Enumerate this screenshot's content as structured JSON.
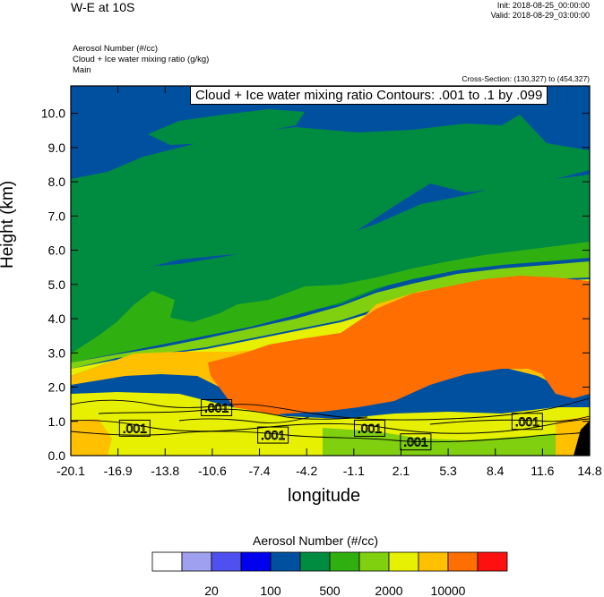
{
  "title": "W-E at 10S",
  "init": "Init: 2018-08-25_00:00:00",
  "valid": "Valid: 2018-08-29_03:00:00",
  "subtitles": [
    "Aerosol Number   (#/cc)",
    "Cloud + Ice water mixing ratio   (g/kg)",
    "Main"
  ],
  "cross_section": "Cross-Section: (130,327) to (454,327)",
  "contour_label": "Cloud + Ice water mixing ratio Contours: .001 to .1 by .099",
  "colors": {
    "levels": [
      "#ffffff",
      "#a0a0f0",
      "#5050f0",
      "#0000ee",
      "#0050a0",
      "#008c40",
      "#30b010",
      "#80d010",
      "#e6f000",
      "#ffc000",
      "#ff6e00",
      "#ff1010"
    ],
    "contour": "#000000"
  },
  "chart_data": {
    "type": "heatmap",
    "xlabel": "longitude",
    "ylabel": "Height (km)",
    "x_ticks": [
      "-20.1",
      "-16.9",
      "-13.8",
      "-10.6",
      "-7.4",
      "-4.2",
      "-1.1",
      "2.1",
      "5.3",
      "8.4",
      "11.6",
      "14.8"
    ],
    "y_ticks": [
      "0.0",
      "1.0",
      "2.0",
      "3.0",
      "4.0",
      "5.0",
      "6.0",
      "7.0",
      "8.0",
      "9.0",
      "10.0"
    ],
    "xlim": [
      -20.1,
      14.8
    ],
    "ylim": [
      0,
      10.8
    ],
    "colorbar": {
      "title": "Aerosol Number  (#/cc)",
      "labels": [
        "20",
        "100",
        "500",
        "2000",
        "10000"
      ]
    },
    "contour_labels": [
      {
        "text": ".001",
        "x": -10.3,
        "y": 1.4
      },
      {
        "text": ".001",
        "x": -15.8,
        "y": 0.8
      },
      {
        "text": ".001",
        "x": -6.5,
        "y": 0.6
      },
      {
        "text": ".001",
        "x": 0.0,
        "y": 0.8
      },
      {
        "text": ".001",
        "x": 3.1,
        "y": 0.4
      },
      {
        "text": ".001",
        "x": 10.6,
        "y": 1.0
      }
    ]
  }
}
